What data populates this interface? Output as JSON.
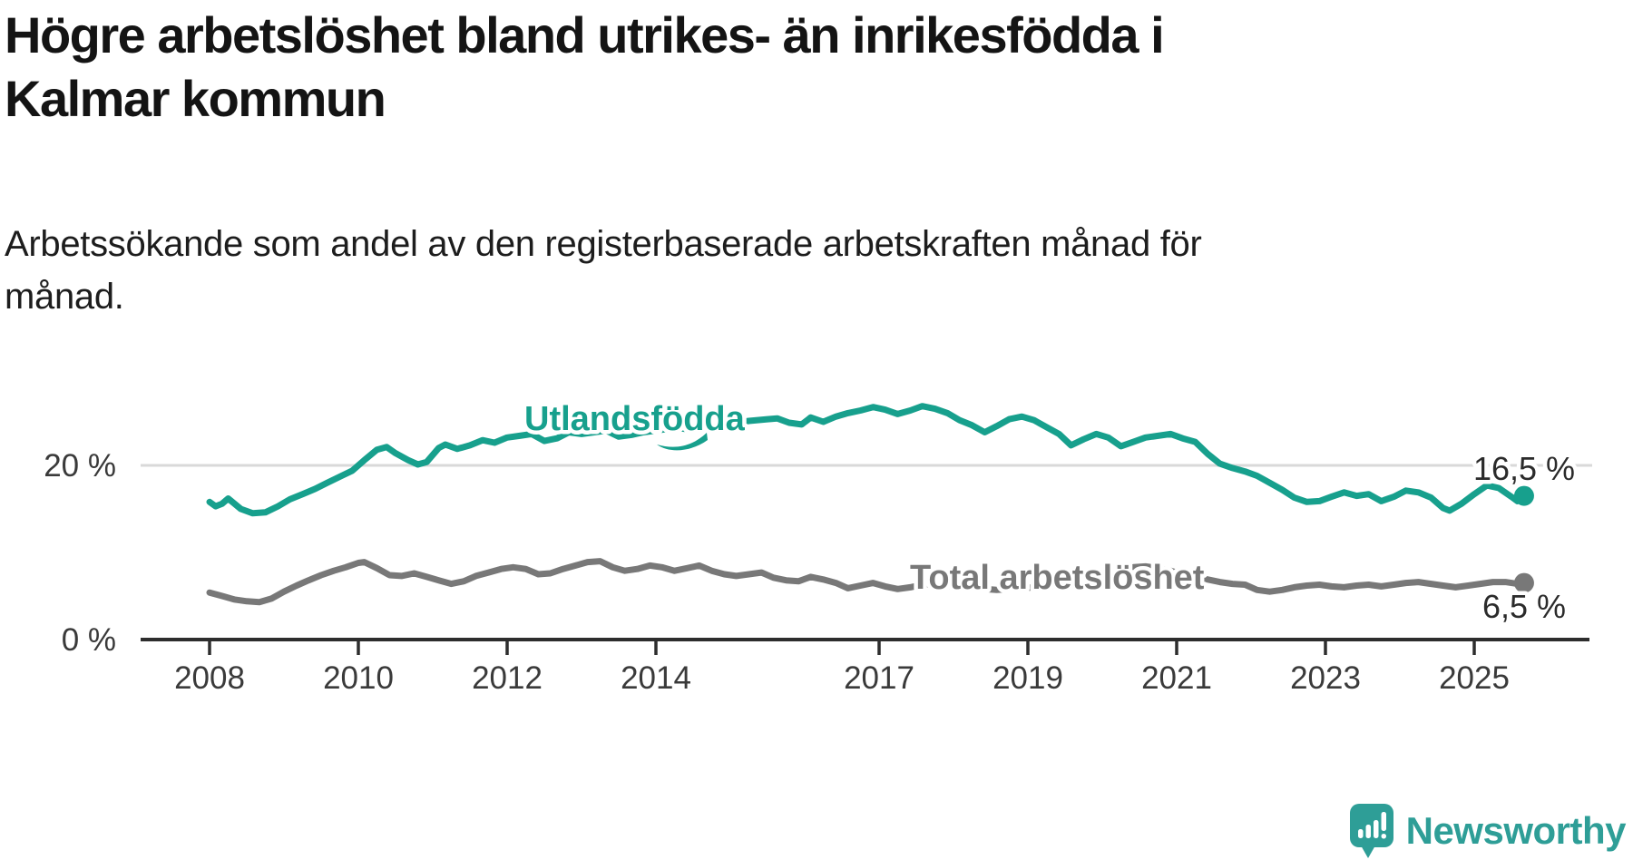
{
  "header": {
    "title_lines": [
      "Högre arbetslöshet bland utrikes- än inrikesfödda i",
      "Kalmar kommun"
    ],
    "subtitle_lines": [
      "Arbetssökande som andel av den registerbaserade arbetskraften månad för",
      "månad."
    ]
  },
  "chart_data": {
    "type": "line",
    "title": "Högre arbetslöshet bland utrikes- än inrikesfödda i Kalmar kommun",
    "subtitle": "Arbetssökande som andel av den registerbaserade arbetskraften månad för månad.",
    "x_unit": "year (monthly observations)",
    "x_range": [
      2008.0,
      2025.67
    ],
    "ylim": [
      0,
      28
    ],
    "grid": "horizontal gridline at 20 % only",
    "legend_position": "inline labels on lines",
    "x_tick_years": [
      "2008",
      "2010",
      "2012",
      "2014",
      "2017",
      "2019",
      "2021",
      "2023",
      "2025"
    ],
    "y_ticks": [
      {
        "value": 0,
        "label": "0 %"
      },
      {
        "value": 20,
        "label": "20 %"
      }
    ],
    "series": [
      {
        "name": "Utlandsfödda",
        "color": "#17a08d",
        "end_label": "16,5 %",
        "end_value": 16.5,
        "points": [
          [
            2008.0,
            15.8
          ],
          [
            2008.08,
            15.3
          ],
          [
            2008.17,
            15.6
          ],
          [
            2008.25,
            16.2
          ],
          [
            2008.42,
            15.0
          ],
          [
            2008.58,
            14.5
          ],
          [
            2008.75,
            14.6
          ],
          [
            2008.92,
            15.3
          ],
          [
            2009.08,
            16.1
          ],
          [
            2009.25,
            16.7
          ],
          [
            2009.42,
            17.3
          ],
          [
            2009.58,
            18.0
          ],
          [
            2009.75,
            18.7
          ],
          [
            2009.92,
            19.4
          ],
          [
            2010.08,
            20.6
          ],
          [
            2010.25,
            21.8
          ],
          [
            2010.38,
            22.1
          ],
          [
            2010.5,
            21.4
          ],
          [
            2010.67,
            20.6
          ],
          [
            2010.8,
            20.1
          ],
          [
            2010.92,
            20.4
          ],
          [
            2011.08,
            22.0
          ],
          [
            2011.17,
            22.4
          ],
          [
            2011.33,
            21.9
          ],
          [
            2011.5,
            22.3
          ],
          [
            2011.67,
            22.9
          ],
          [
            2011.83,
            22.6
          ],
          [
            2012.0,
            23.2
          ],
          [
            2012.17,
            23.4
          ],
          [
            2012.33,
            23.6
          ],
          [
            2012.5,
            22.8
          ],
          [
            2012.67,
            23.1
          ],
          [
            2012.83,
            23.8
          ],
          [
            2013.0,
            23.6
          ],
          [
            2013.17,
            23.8
          ],
          [
            2013.33,
            24.0
          ],
          [
            2013.5,
            23.3
          ],
          [
            2013.67,
            23.5
          ],
          [
            2013.83,
            23.8
          ],
          [
            2014.0,
            24.0
          ],
          [
            2014.25,
            24.3
          ],
          [
            2014.5,
            24.1
          ],
          [
            2014.75,
            24.5
          ],
          [
            2015.0,
            24.8
          ],
          [
            2015.25,
            25.1
          ],
          [
            2015.5,
            25.3
          ],
          [
            2015.63,
            25.4
          ],
          [
            2015.79,
            24.9
          ],
          [
            2015.96,
            24.7
          ],
          [
            2016.08,
            25.5
          ],
          [
            2016.25,
            25.0
          ],
          [
            2016.42,
            25.6
          ],
          [
            2016.58,
            26.0
          ],
          [
            2016.75,
            26.3
          ],
          [
            2016.92,
            26.7
          ],
          [
            2017.08,
            26.4
          ],
          [
            2017.25,
            25.9
          ],
          [
            2017.42,
            26.3
          ],
          [
            2017.58,
            26.8
          ],
          [
            2017.75,
            26.5
          ],
          [
            2017.92,
            26.0
          ],
          [
            2018.08,
            25.2
          ],
          [
            2018.25,
            24.6
          ],
          [
            2018.42,
            23.8
          ],
          [
            2018.58,
            24.5
          ],
          [
            2018.75,
            25.3
          ],
          [
            2018.92,
            25.6
          ],
          [
            2019.08,
            25.2
          ],
          [
            2019.25,
            24.4
          ],
          [
            2019.42,
            23.6
          ],
          [
            2019.58,
            22.3
          ],
          [
            2019.75,
            23.0
          ],
          [
            2019.92,
            23.6
          ],
          [
            2020.08,
            23.2
          ],
          [
            2020.25,
            22.2
          ],
          [
            2020.42,
            22.7
          ],
          [
            2020.58,
            23.2
          ],
          [
            2020.75,
            23.4
          ],
          [
            2020.92,
            23.6
          ],
          [
            2021.08,
            23.1
          ],
          [
            2021.25,
            22.7
          ],
          [
            2021.42,
            21.3
          ],
          [
            2021.58,
            20.2
          ],
          [
            2021.75,
            19.7
          ],
          [
            2021.92,
            19.3
          ],
          [
            2022.08,
            18.8
          ],
          [
            2022.25,
            18.0
          ],
          [
            2022.42,
            17.2
          ],
          [
            2022.58,
            16.3
          ],
          [
            2022.75,
            15.8
          ],
          [
            2022.92,
            15.9
          ],
          [
            2023.08,
            16.4
          ],
          [
            2023.25,
            16.9
          ],
          [
            2023.42,
            16.5
          ],
          [
            2023.58,
            16.7
          ],
          [
            2023.75,
            15.9
          ],
          [
            2023.92,
            16.4
          ],
          [
            2024.08,
            17.1
          ],
          [
            2024.25,
            16.9
          ],
          [
            2024.42,
            16.3
          ],
          [
            2024.58,
            15.1
          ],
          [
            2024.67,
            14.8
          ],
          [
            2024.83,
            15.6
          ],
          [
            2025.0,
            16.7
          ],
          [
            2025.17,
            17.7
          ],
          [
            2025.33,
            17.4
          ],
          [
            2025.5,
            16.4
          ],
          [
            2025.58,
            15.9
          ],
          [
            2025.67,
            16.5
          ]
        ]
      },
      {
        "name": "Total arbetslöshet",
        "color": "#787878",
        "end_label": "6,5 %",
        "end_value": 6.5,
        "points": [
          [
            2008.0,
            5.4
          ],
          [
            2008.17,
            5.0
          ],
          [
            2008.33,
            4.6
          ],
          [
            2008.5,
            4.4
          ],
          [
            2008.67,
            4.3
          ],
          [
            2008.83,
            4.7
          ],
          [
            2009.0,
            5.5
          ],
          [
            2009.17,
            6.2
          ],
          [
            2009.33,
            6.8
          ],
          [
            2009.5,
            7.4
          ],
          [
            2009.67,
            7.9
          ],
          [
            2009.83,
            8.3
          ],
          [
            2010.0,
            8.8
          ],
          [
            2010.08,
            8.9
          ],
          [
            2010.25,
            8.2
          ],
          [
            2010.42,
            7.4
          ],
          [
            2010.58,
            7.3
          ],
          [
            2010.75,
            7.6
          ],
          [
            2010.92,
            7.2
          ],
          [
            2011.08,
            6.8
          ],
          [
            2011.25,
            6.4
          ],
          [
            2011.42,
            6.7
          ],
          [
            2011.58,
            7.3
          ],
          [
            2011.75,
            7.7
          ],
          [
            2011.92,
            8.1
          ],
          [
            2012.08,
            8.3
          ],
          [
            2012.25,
            8.1
          ],
          [
            2012.42,
            7.5
          ],
          [
            2012.58,
            7.6
          ],
          [
            2012.75,
            8.1
          ],
          [
            2012.92,
            8.5
          ],
          [
            2013.08,
            8.9
          ],
          [
            2013.25,
            9.0
          ],
          [
            2013.42,
            8.3
          ],
          [
            2013.58,
            7.9
          ],
          [
            2013.75,
            8.1
          ],
          [
            2013.92,
            8.5
          ],
          [
            2014.08,
            8.3
          ],
          [
            2014.25,
            7.9
          ],
          [
            2014.42,
            8.2
          ],
          [
            2014.58,
            8.5
          ],
          [
            2014.75,
            7.9
          ],
          [
            2014.92,
            7.5
          ],
          [
            2015.08,
            7.3
          ],
          [
            2015.25,
            7.5
          ],
          [
            2015.42,
            7.7
          ],
          [
            2015.58,
            7.1
          ],
          [
            2015.75,
            6.8
          ],
          [
            2015.92,
            6.7
          ],
          [
            2016.08,
            7.2
          ],
          [
            2016.25,
            6.9
          ],
          [
            2016.42,
            6.5
          ],
          [
            2016.58,
            5.9
          ],
          [
            2016.75,
            6.2
          ],
          [
            2016.92,
            6.5
          ],
          [
            2017.08,
            6.1
          ],
          [
            2017.25,
            5.8
          ],
          [
            2017.42,
            6.0
          ],
          [
            2017.58,
            6.3
          ],
          [
            2017.75,
            6.4
          ],
          [
            2017.92,
            6.2
          ],
          [
            2018.08,
            6.0
          ],
          [
            2018.25,
            5.9
          ],
          [
            2018.42,
            5.8
          ],
          [
            2018.58,
            5.7
          ],
          [
            2018.75,
            5.8
          ],
          [
            2018.92,
            5.9
          ],
          [
            2019.08,
            6.0
          ],
          [
            2019.25,
            6.1
          ],
          [
            2019.42,
            6.2
          ],
          [
            2019.58,
            6.1
          ],
          [
            2019.75,
            6.2
          ],
          [
            2019.92,
            6.4
          ],
          [
            2020.08,
            6.8
          ],
          [
            2020.25,
            7.8
          ],
          [
            2020.42,
            8.3
          ],
          [
            2020.58,
            8.4
          ],
          [
            2020.75,
            8.2
          ],
          [
            2020.92,
            7.9
          ],
          [
            2021.08,
            7.5
          ],
          [
            2021.25,
            7.2
          ],
          [
            2021.42,
            6.9
          ],
          [
            2021.58,
            6.6
          ],
          [
            2021.75,
            6.4
          ],
          [
            2021.92,
            6.3
          ],
          [
            2022.08,
            5.7
          ],
          [
            2022.25,
            5.5
          ],
          [
            2022.42,
            5.7
          ],
          [
            2022.58,
            6.0
          ],
          [
            2022.75,
            6.2
          ],
          [
            2022.92,
            6.3
          ],
          [
            2023.08,
            6.1
          ],
          [
            2023.25,
            6.0
          ],
          [
            2023.42,
            6.2
          ],
          [
            2023.58,
            6.3
          ],
          [
            2023.75,
            6.1
          ],
          [
            2023.92,
            6.3
          ],
          [
            2024.08,
            6.5
          ],
          [
            2024.25,
            6.6
          ],
          [
            2024.42,
            6.4
          ],
          [
            2024.58,
            6.2
          ],
          [
            2024.75,
            6.0
          ],
          [
            2024.92,
            6.2
          ],
          [
            2025.08,
            6.4
          ],
          [
            2025.25,
            6.6
          ],
          [
            2025.42,
            6.6
          ],
          [
            2025.58,
            6.4
          ],
          [
            2025.67,
            6.5
          ]
        ]
      }
    ]
  },
  "footer": {
    "brand": "Newsworthy"
  }
}
